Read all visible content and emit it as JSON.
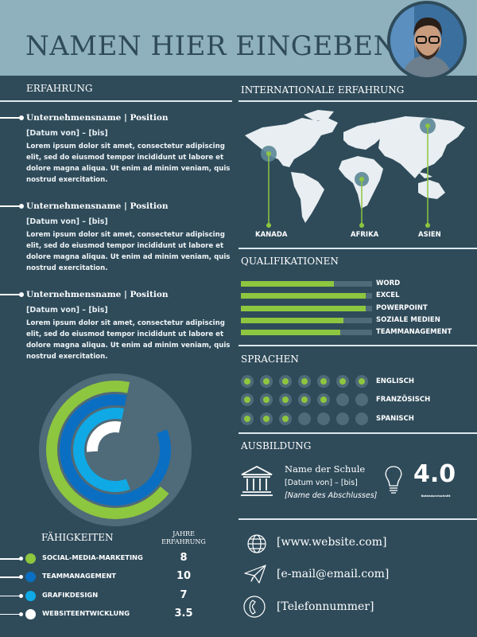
{
  "header": {
    "name": "NAMEN HIER EINGEBEN",
    "photo": "profile-photo"
  },
  "experience": {
    "heading": "ERFAHRUNG",
    "jobs": [
      {
        "title": "Unternehmensname | Position",
        "date": "[Datum von] – [bis]",
        "desc": "Lorem ipsum dolor sit amet, consectetur adipiscing elit, sed do eiusmod tempor incididunt ut labore et dolore magna aliqua. Ut enim ad minim veniam, quis nostrud exercitation."
      },
      {
        "title": "Unternehmensname | Position",
        "date": "[Datum von] – [bis]",
        "desc": "Lorem ipsum dolor sit amet, consectetur adipiscing elit, sed do eiusmod tempor incididunt ut labore et dolore magna aliqua. Ut enim ad minim veniam, quis nostrud exercitation."
      },
      {
        "title": "Unternehmensname | Position",
        "date": "[Datum von] – [bis]",
        "desc": "Lorem ipsum dolor sit amet, consectetur adipiscing elit, sed do eiusmod tempor incididunt ut labore et dolore magna aliqua. Ut enim ad minim veniam, quis nostrud exercitation."
      }
    ]
  },
  "skills": {
    "heading": "FÄHIGKEITEN",
    "years_heading_1": "JAHRE",
    "years_heading_2": "ERFAHRUNG",
    "items": [
      {
        "name": "SOCIAL-MEDIA-MARKETING",
        "years": "8",
        "color": "#8dc63f"
      },
      {
        "name": "TEAMMANAGEMENT",
        "years": "10",
        "color": "#0a6fc2"
      },
      {
        "name": "GRAFIKDESIGN",
        "years": "7",
        "color": "#0fa9e6"
      },
      {
        "name": "WEBSITEENTWICKLUNG",
        "years": "3.5",
        "color": "#ffffff"
      }
    ]
  },
  "international": {
    "heading": "INTERNATIONALE ERFAHRUNG",
    "locations": [
      "KANADA",
      "AFRIKA",
      "ASIEN"
    ]
  },
  "qualifications": {
    "heading": "QUALIFIKATIONEN",
    "items": [
      {
        "label": "WORD",
        "level": 0.71
      },
      {
        "label": "EXCEL",
        "level": 0.95
      },
      {
        "label": "POWERPOINT",
        "level": 0.95
      },
      {
        "label": "SOZIALE MEDIEN",
        "level": 0.78
      },
      {
        "label": "TEAMMANAGEMENT",
        "level": 0.76
      }
    ]
  },
  "languages": {
    "heading": "SPRACHEN",
    "max": 7,
    "items": [
      {
        "label": "ENGLISCH",
        "level": 7
      },
      {
        "label": "FRANZÖSISCH",
        "level": 5
      },
      {
        "label": "SPANISCH",
        "level": 3
      }
    ]
  },
  "education": {
    "heading": "AUSBILDUNG",
    "school": "Name der Schule",
    "date": "[Datum von] – [bis]",
    "degree": "[Name des Abschlusses]",
    "gpa": "4.0",
    "gpa_label": "Notendurchschnitt"
  },
  "contact": {
    "website": "[www.website.com]",
    "email": "[e-mail@email.com]",
    "phone": "[Telefonnummer]"
  },
  "colors": {
    "background": "#2f4b5a",
    "header": "#8fb0bd",
    "accent": "#8dc63f"
  }
}
